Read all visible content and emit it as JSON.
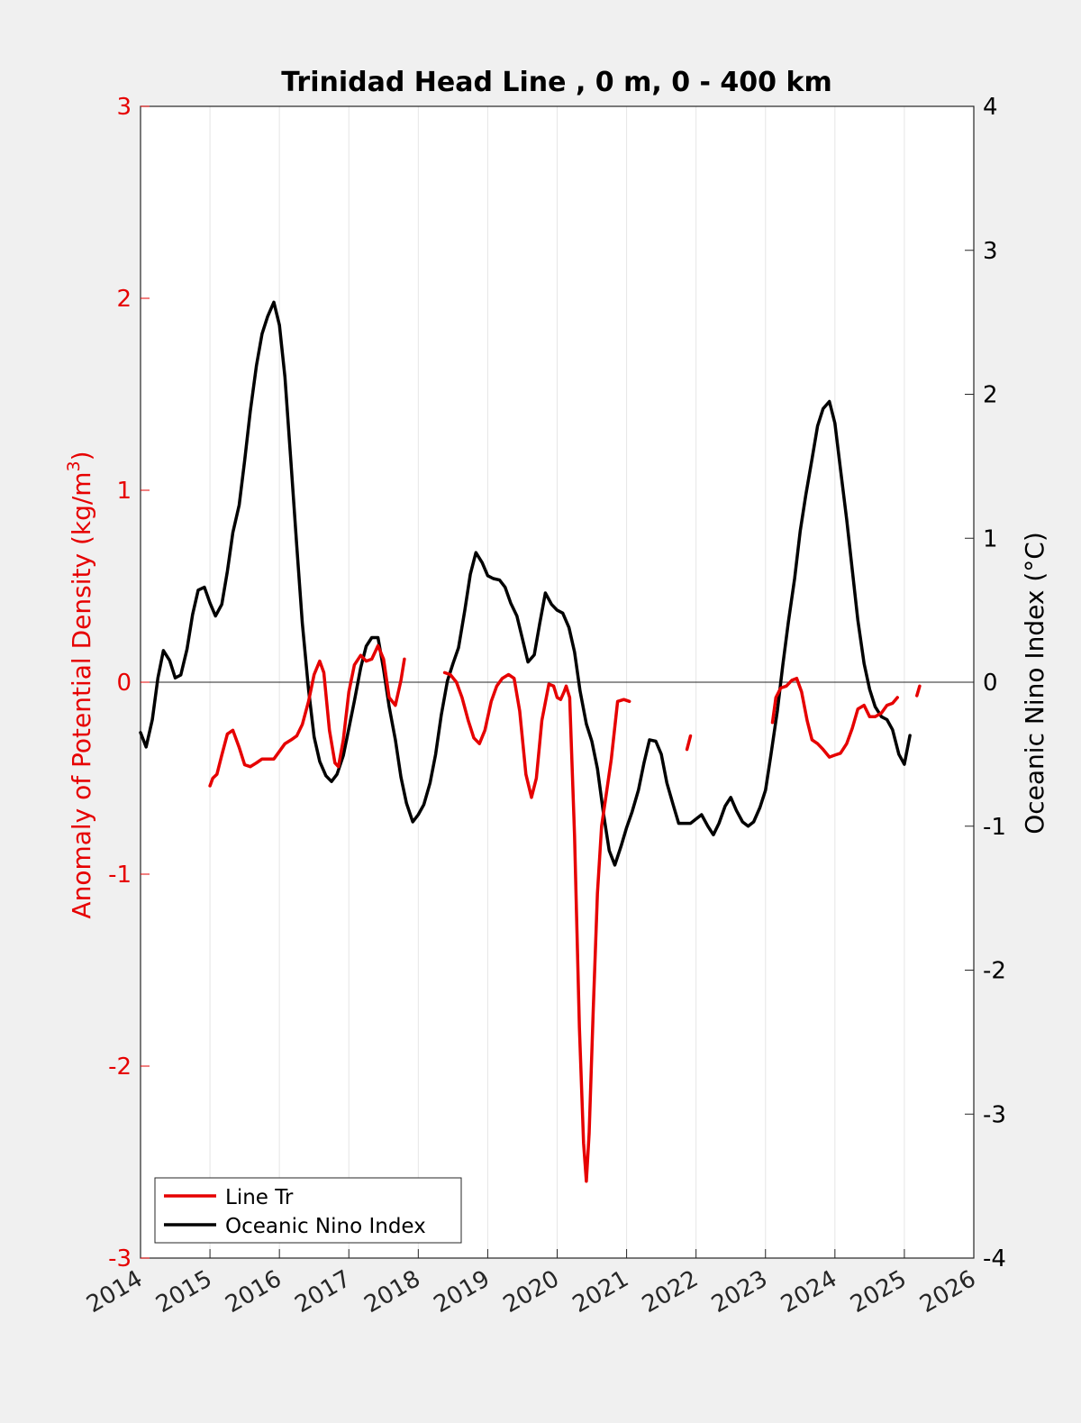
{
  "chart_data": {
    "type": "line",
    "title": "Trinidad Head Line , 0 m, 0 - 400 km",
    "xlim": [
      2014,
      2026
    ],
    "x_ticks": [
      "2014",
      "2015",
      "2016",
      "2017",
      "2018",
      "2019",
      "2020",
      "2021",
      "2022",
      "2023",
      "2024",
      "2025",
      "2026"
    ],
    "left_axis": {
      "label": "Anomaly of Potential Density (kg/m",
      "label_superscript": "3",
      "label_suffix": ")",
      "ylim": [
        -3,
        3
      ],
      "ticks": [
        "-3",
        "-2",
        "-1",
        "0",
        "1",
        "2",
        "3"
      ],
      "color": "#e60000"
    },
    "right_axis": {
      "label": "Oceanic Nino Index (°C)",
      "ylim": [
        -4,
        4
      ],
      "ticks": [
        "-4",
        "-3",
        "-2",
        "-1",
        "0",
        "1",
        "2",
        "3",
        "4"
      ],
      "color": "#000000"
    },
    "grid": "vertical",
    "zero_line": true,
    "legend": {
      "placement": "bottom-left",
      "entries": [
        "Line Tr",
        "Oceanic Nino Index"
      ]
    },
    "series": [
      {
        "name": "Line Tr",
        "axis": "left",
        "color": "#e60000",
        "segments": [
          [
            [
              2015.0,
              -0.54
            ],
            [
              2015.04,
              -0.5
            ],
            [
              2015.1,
              -0.48
            ],
            [
              2015.17,
              -0.38
            ],
            [
              2015.25,
              -0.27
            ],
            [
              2015.33,
              -0.25
            ],
            [
              2015.42,
              -0.34
            ],
            [
              2015.5,
              -0.43
            ],
            [
              2015.58,
              -0.44
            ],
            [
              2015.67,
              -0.42
            ],
            [
              2015.75,
              -0.4
            ],
            [
              2015.83,
              -0.4
            ],
            [
              2015.92,
              -0.4
            ],
            [
              2016.0,
              -0.36
            ],
            [
              2016.08,
              -0.32
            ],
            [
              2016.17,
              -0.3
            ],
            [
              2016.25,
              -0.28
            ],
            [
              2016.33,
              -0.22
            ],
            [
              2016.42,
              -0.1
            ],
            [
              2016.5,
              0.04
            ],
            [
              2016.58,
              0.11
            ],
            [
              2016.64,
              0.05
            ],
            [
              2016.72,
              -0.25
            ],
            [
              2016.8,
              -0.42
            ],
            [
              2016.85,
              -0.44
            ],
            [
              2016.92,
              -0.3
            ],
            [
              2017.0,
              -0.05
            ],
            [
              2017.08,
              0.09
            ],
            [
              2017.17,
              0.14
            ],
            [
              2017.25,
              0.11
            ],
            [
              2017.33,
              0.12
            ],
            [
              2017.42,
              0.19
            ],
            [
              2017.5,
              0.12
            ],
            [
              2017.58,
              -0.08
            ],
            [
              2017.67,
              -0.12
            ],
            [
              2017.75,
              0.01
            ],
            [
              2017.8,
              0.12
            ]
          ],
          [
            [
              2018.38,
              0.05
            ],
            [
              2018.46,
              0.04
            ],
            [
              2018.55,
              0.0
            ],
            [
              2018.63,
              -0.08
            ],
            [
              2018.72,
              -0.2
            ],
            [
              2018.8,
              -0.29
            ],
            [
              2018.88,
              -0.32
            ],
            [
              2018.96,
              -0.25
            ],
            [
              2019.05,
              -0.1
            ],
            [
              2019.13,
              -0.02
            ],
            [
              2019.21,
              0.02
            ],
            [
              2019.3,
              0.04
            ],
            [
              2019.38,
              0.02
            ],
            [
              2019.46,
              -0.15
            ],
            [
              2019.55,
              -0.48
            ],
            [
              2019.63,
              -0.6
            ],
            [
              2019.7,
              -0.5
            ],
            [
              2019.78,
              -0.2
            ],
            [
              2019.88,
              -0.01
            ],
            [
              2019.95,
              -0.02
            ],
            [
              2020.0,
              -0.08
            ],
            [
              2020.05,
              -0.09
            ],
            [
              2020.1,
              -0.05
            ],
            [
              2020.13,
              -0.02
            ],
            [
              2020.18,
              -0.08
            ],
            [
              2020.25,
              -0.8
            ],
            [
              2020.32,
              -1.8
            ],
            [
              2020.38,
              -2.4
            ],
            [
              2020.42,
              -2.6
            ],
            [
              2020.46,
              -2.35
            ],
            [
              2020.52,
              -1.7
            ],
            [
              2020.58,
              -1.1
            ],
            [
              2020.64,
              -0.75
            ],
            [
              2020.7,
              -0.6
            ],
            [
              2020.78,
              -0.4
            ],
            [
              2020.87,
              -0.1
            ],
            [
              2020.96,
              -0.09
            ],
            [
              2021.04,
              -0.1
            ]
          ],
          [
            [
              2021.87,
              -0.35
            ],
            [
              2021.92,
              -0.28
            ]
          ],
          [
            [
              2023.1,
              -0.21
            ],
            [
              2023.15,
              -0.08
            ],
            [
              2023.22,
              -0.03
            ],
            [
              2023.3,
              -0.02
            ],
            [
              2023.38,
              0.01
            ],
            [
              2023.45,
              0.02
            ],
            [
              2023.52,
              -0.05
            ],
            [
              2023.6,
              -0.2
            ],
            [
              2023.67,
              -0.3
            ],
            [
              2023.75,
              -0.32
            ],
            [
              2023.83,
              -0.35
            ],
            [
              2023.92,
              -0.39
            ],
            [
              2024.0,
              -0.38
            ],
            [
              2024.08,
              -0.37
            ],
            [
              2024.17,
              -0.32
            ],
            [
              2024.25,
              -0.24
            ],
            [
              2024.33,
              -0.14
            ],
            [
              2024.42,
              -0.12
            ],
            [
              2024.5,
              -0.18
            ],
            [
              2024.58,
              -0.18
            ],
            [
              2024.67,
              -0.16
            ],
            [
              2024.75,
              -0.12
            ],
            [
              2024.83,
              -0.11
            ],
            [
              2024.9,
              -0.08
            ]
          ],
          [
            [
              2025.18,
              -0.07
            ],
            [
              2025.22,
              -0.02
            ]
          ]
        ]
      },
      {
        "name": "Oceanic Nino Index",
        "axis": "right",
        "color": "#000000",
        "segments": [
          [
            [
              2014.0,
              -0.35
            ],
            [
              2014.08,
              -0.45
            ],
            [
              2014.17,
              -0.26
            ],
            [
              2014.25,
              0.03
            ],
            [
              2014.33,
              0.22
            ],
            [
              2014.42,
              0.15
            ],
            [
              2014.5,
              0.03
            ],
            [
              2014.58,
              0.05
            ],
            [
              2014.67,
              0.23
            ],
            [
              2014.75,
              0.47
            ],
            [
              2014.83,
              0.64
            ],
            [
              2014.92,
              0.66
            ],
            [
              2015.0,
              0.55
            ],
            [
              2015.08,
              0.46
            ],
            [
              2015.17,
              0.54
            ],
            [
              2015.25,
              0.77
            ],
            [
              2015.33,
              1.04
            ],
            [
              2015.42,
              1.23
            ],
            [
              2015.5,
              1.54
            ],
            [
              2015.58,
              1.88
            ],
            [
              2015.67,
              2.2
            ],
            [
              2015.75,
              2.42
            ],
            [
              2015.83,
              2.54
            ],
            [
              2015.92,
              2.64
            ],
            [
              2016.0,
              2.48
            ],
            [
              2016.08,
              2.12
            ],
            [
              2016.17,
              1.5
            ],
            [
              2016.25,
              0.95
            ],
            [
              2016.33,
              0.41
            ],
            [
              2016.42,
              -0.05
            ],
            [
              2016.5,
              -0.38
            ],
            [
              2016.58,
              -0.55
            ],
            [
              2016.67,
              -0.65
            ],
            [
              2016.75,
              -0.69
            ],
            [
              2016.83,
              -0.64
            ],
            [
              2016.92,
              -0.51
            ],
            [
              2017.0,
              -0.32
            ],
            [
              2017.08,
              -0.13
            ],
            [
              2017.17,
              0.1
            ],
            [
              2017.25,
              0.25
            ],
            [
              2017.33,
              0.31
            ],
            [
              2017.42,
              0.31
            ],
            [
              2017.5,
              0.09
            ],
            [
              2017.58,
              -0.17
            ],
            [
              2017.67,
              -0.4
            ],
            [
              2017.75,
              -0.66
            ],
            [
              2017.83,
              -0.84
            ],
            [
              2017.92,
              -0.97
            ],
            [
              2018.0,
              -0.92
            ],
            [
              2018.08,
              -0.85
            ],
            [
              2018.17,
              -0.7
            ],
            [
              2018.25,
              -0.5
            ],
            [
              2018.33,
              -0.23
            ],
            [
              2018.42,
              0.01
            ],
            [
              2018.5,
              0.13
            ],
            [
              2018.58,
              0.24
            ],
            [
              2018.67,
              0.5
            ],
            [
              2018.75,
              0.75
            ],
            [
              2018.83,
              0.9
            ],
            [
              2018.92,
              0.83
            ],
            [
              2019.0,
              0.74
            ],
            [
              2019.08,
              0.72
            ],
            [
              2019.17,
              0.71
            ],
            [
              2019.25,
              0.66
            ],
            [
              2019.33,
              0.55
            ],
            [
              2019.42,
              0.46
            ],
            [
              2019.5,
              0.3
            ],
            [
              2019.58,
              0.14
            ],
            [
              2019.67,
              0.19
            ],
            [
              2019.75,
              0.41
            ],
            [
              2019.83,
              0.62
            ],
            [
              2019.92,
              0.54
            ],
            [
              2020.0,
              0.5
            ],
            [
              2020.08,
              0.48
            ],
            [
              2020.17,
              0.38
            ],
            [
              2020.25,
              0.21
            ],
            [
              2020.33,
              -0.06
            ],
            [
              2020.42,
              -0.29
            ],
            [
              2020.5,
              -0.41
            ],
            [
              2020.58,
              -0.6
            ],
            [
              2020.67,
              -0.92
            ],
            [
              2020.75,
              -1.17
            ],
            [
              2020.83,
              -1.27
            ],
            [
              2020.92,
              -1.14
            ],
            [
              2021.0,
              -1.01
            ],
            [
              2021.08,
              -0.9
            ],
            [
              2021.17,
              -0.75
            ],
            [
              2021.25,
              -0.56
            ],
            [
              2021.33,
              -0.4
            ],
            [
              2021.42,
              -0.41
            ],
            [
              2021.5,
              -0.5
            ],
            [
              2021.58,
              -0.7
            ],
            [
              2021.67,
              -0.85
            ],
            [
              2021.75,
              -0.98
            ],
            [
              2021.83,
              -0.98
            ],
            [
              2021.92,
              -0.98
            ],
            [
              2022.0,
              -0.95
            ],
            [
              2022.08,
              -0.92
            ],
            [
              2022.17,
              -1.0
            ],
            [
              2022.25,
              -1.06
            ],
            [
              2022.33,
              -0.98
            ],
            [
              2022.42,
              -0.86
            ],
            [
              2022.5,
              -0.8
            ],
            [
              2022.58,
              -0.89
            ],
            [
              2022.67,
              -0.97
            ],
            [
              2022.75,
              -1.0
            ],
            [
              2022.83,
              -0.97
            ],
            [
              2022.92,
              -0.87
            ],
            [
              2023.0,
              -0.75
            ],
            [
              2023.08,
              -0.5
            ],
            [
              2023.17,
              -0.2
            ],
            [
              2023.25,
              0.12
            ],
            [
              2023.33,
              0.42
            ],
            [
              2023.42,
              0.72
            ],
            [
              2023.5,
              1.05
            ],
            [
              2023.58,
              1.3
            ],
            [
              2023.67,
              1.55
            ],
            [
              2023.75,
              1.78
            ],
            [
              2023.83,
              1.9
            ],
            [
              2023.92,
              1.95
            ],
            [
              2024.0,
              1.8
            ],
            [
              2024.08,
              1.48
            ],
            [
              2024.17,
              1.13
            ],
            [
              2024.25,
              0.78
            ],
            [
              2024.33,
              0.43
            ],
            [
              2024.42,
              0.13
            ],
            [
              2024.5,
              -0.05
            ],
            [
              2024.58,
              -0.17
            ],
            [
              2024.67,
              -0.24
            ],
            [
              2024.75,
              -0.26
            ],
            [
              2024.83,
              -0.33
            ],
            [
              2024.92,
              -0.5
            ],
            [
              2025.0,
              -0.57
            ],
            [
              2025.08,
              -0.37
            ]
          ]
        ]
      }
    ]
  }
}
